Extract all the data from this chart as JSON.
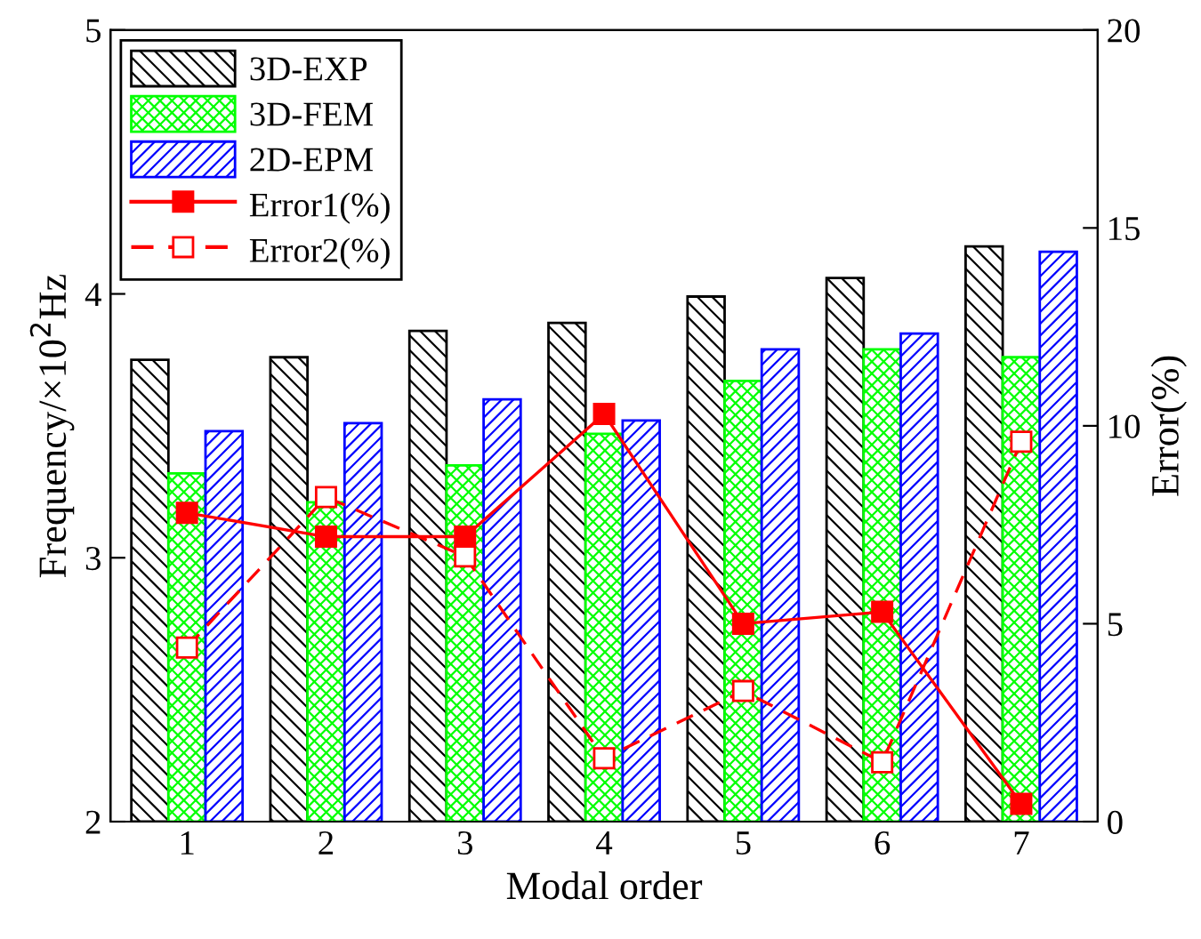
{
  "chart_data": {
    "type": "bar",
    "xlabel": "Modal order",
    "ylabel": "Frequency/×10$^{2}$Hz",
    "y2label": "Error(%)",
    "categories": [
      "1",
      "2",
      "3",
      "4",
      "5",
      "6",
      "7"
    ],
    "series": [
      {
        "name": "3D-EXP",
        "color": "#000000",
        "values": [
          3.75,
          3.76,
          3.86,
          3.89,
          3.99,
          4.06,
          4.18
        ]
      },
      {
        "name": "3D-FEM",
        "color": "#00ff00",
        "values": [
          3.32,
          3.21,
          3.35,
          3.47,
          3.67,
          3.79,
          3.76
        ]
      },
      {
        "name": "2D-EPM",
        "color": "#0000ff",
        "values": [
          3.48,
          3.51,
          3.6,
          3.52,
          3.79,
          3.85,
          4.16
        ]
      },
      {
        "name": "Error1(%)",
        "type": "line",
        "axis": "y2",
        "color": "#ff0000",
        "marker": "square",
        "line_style": "solid",
        "values": [
          7.8,
          7.2,
          7.2,
          10.3,
          5.0,
          5.3,
          0.45
        ]
      },
      {
        "name": "Error2(%)",
        "type": "line",
        "axis": "y2",
        "color": "#ff0000",
        "marker": "square",
        "line_style": "dashed",
        "values": [
          4.4,
          8.2,
          6.7,
          1.6,
          3.3,
          1.5,
          9.6
        ]
      }
    ],
    "ylim": [
      2,
      5
    ],
    "yticks": [
      2,
      3,
      4,
      5
    ],
    "y2lim": [
      0,
      20
    ],
    "y2ticks": [
      0,
      5,
      10,
      15,
      20
    ],
    "legend": "top left",
    "grid": false
  }
}
